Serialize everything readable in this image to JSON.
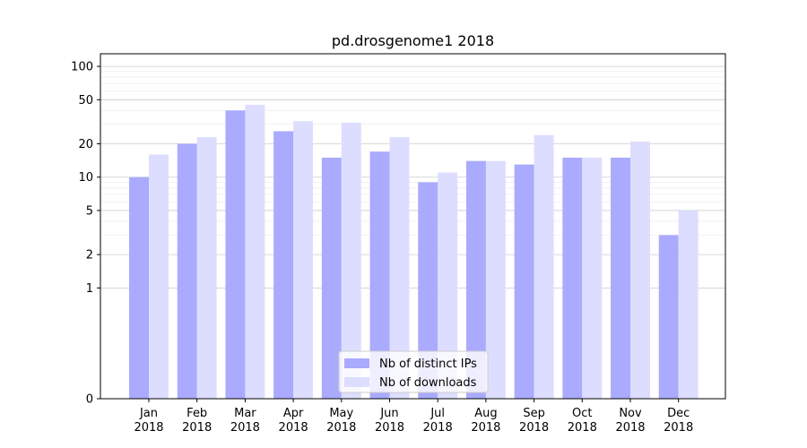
{
  "chart_data": {
    "type": "bar",
    "title": "pd.drosgenome1 2018",
    "xlabel": "",
    "ylabel": "",
    "yscale": "symlog",
    "ylim": [
      0,
      130
    ],
    "y_ticks": [
      0,
      1,
      2,
      5,
      10,
      20,
      50,
      100
    ],
    "grid": "horizontal",
    "legend_position": "bottom-center",
    "categories": [
      "Jan\n2018",
      "Feb\n2018",
      "Mar\n2018",
      "Apr\n2018",
      "May\n2018",
      "Jun\n2018",
      "Jul\n2018",
      "Aug\n2018",
      "Sep\n2018",
      "Oct\n2018",
      "Nov\n2018",
      "Dec\n2018"
    ],
    "series": [
      {
        "name": "Nb of distinct IPs",
        "color": "#aaaaff",
        "values": [
          10,
          20,
          40,
          26,
          15,
          17,
          9,
          14,
          13,
          15,
          15,
          3
        ]
      },
      {
        "name": "Nb of downloads",
        "color": "#ddddff",
        "values": [
          16,
          23,
          45,
          32,
          31,
          23,
          11,
          14,
          24,
          15,
          21,
          5
        ]
      }
    ]
  }
}
